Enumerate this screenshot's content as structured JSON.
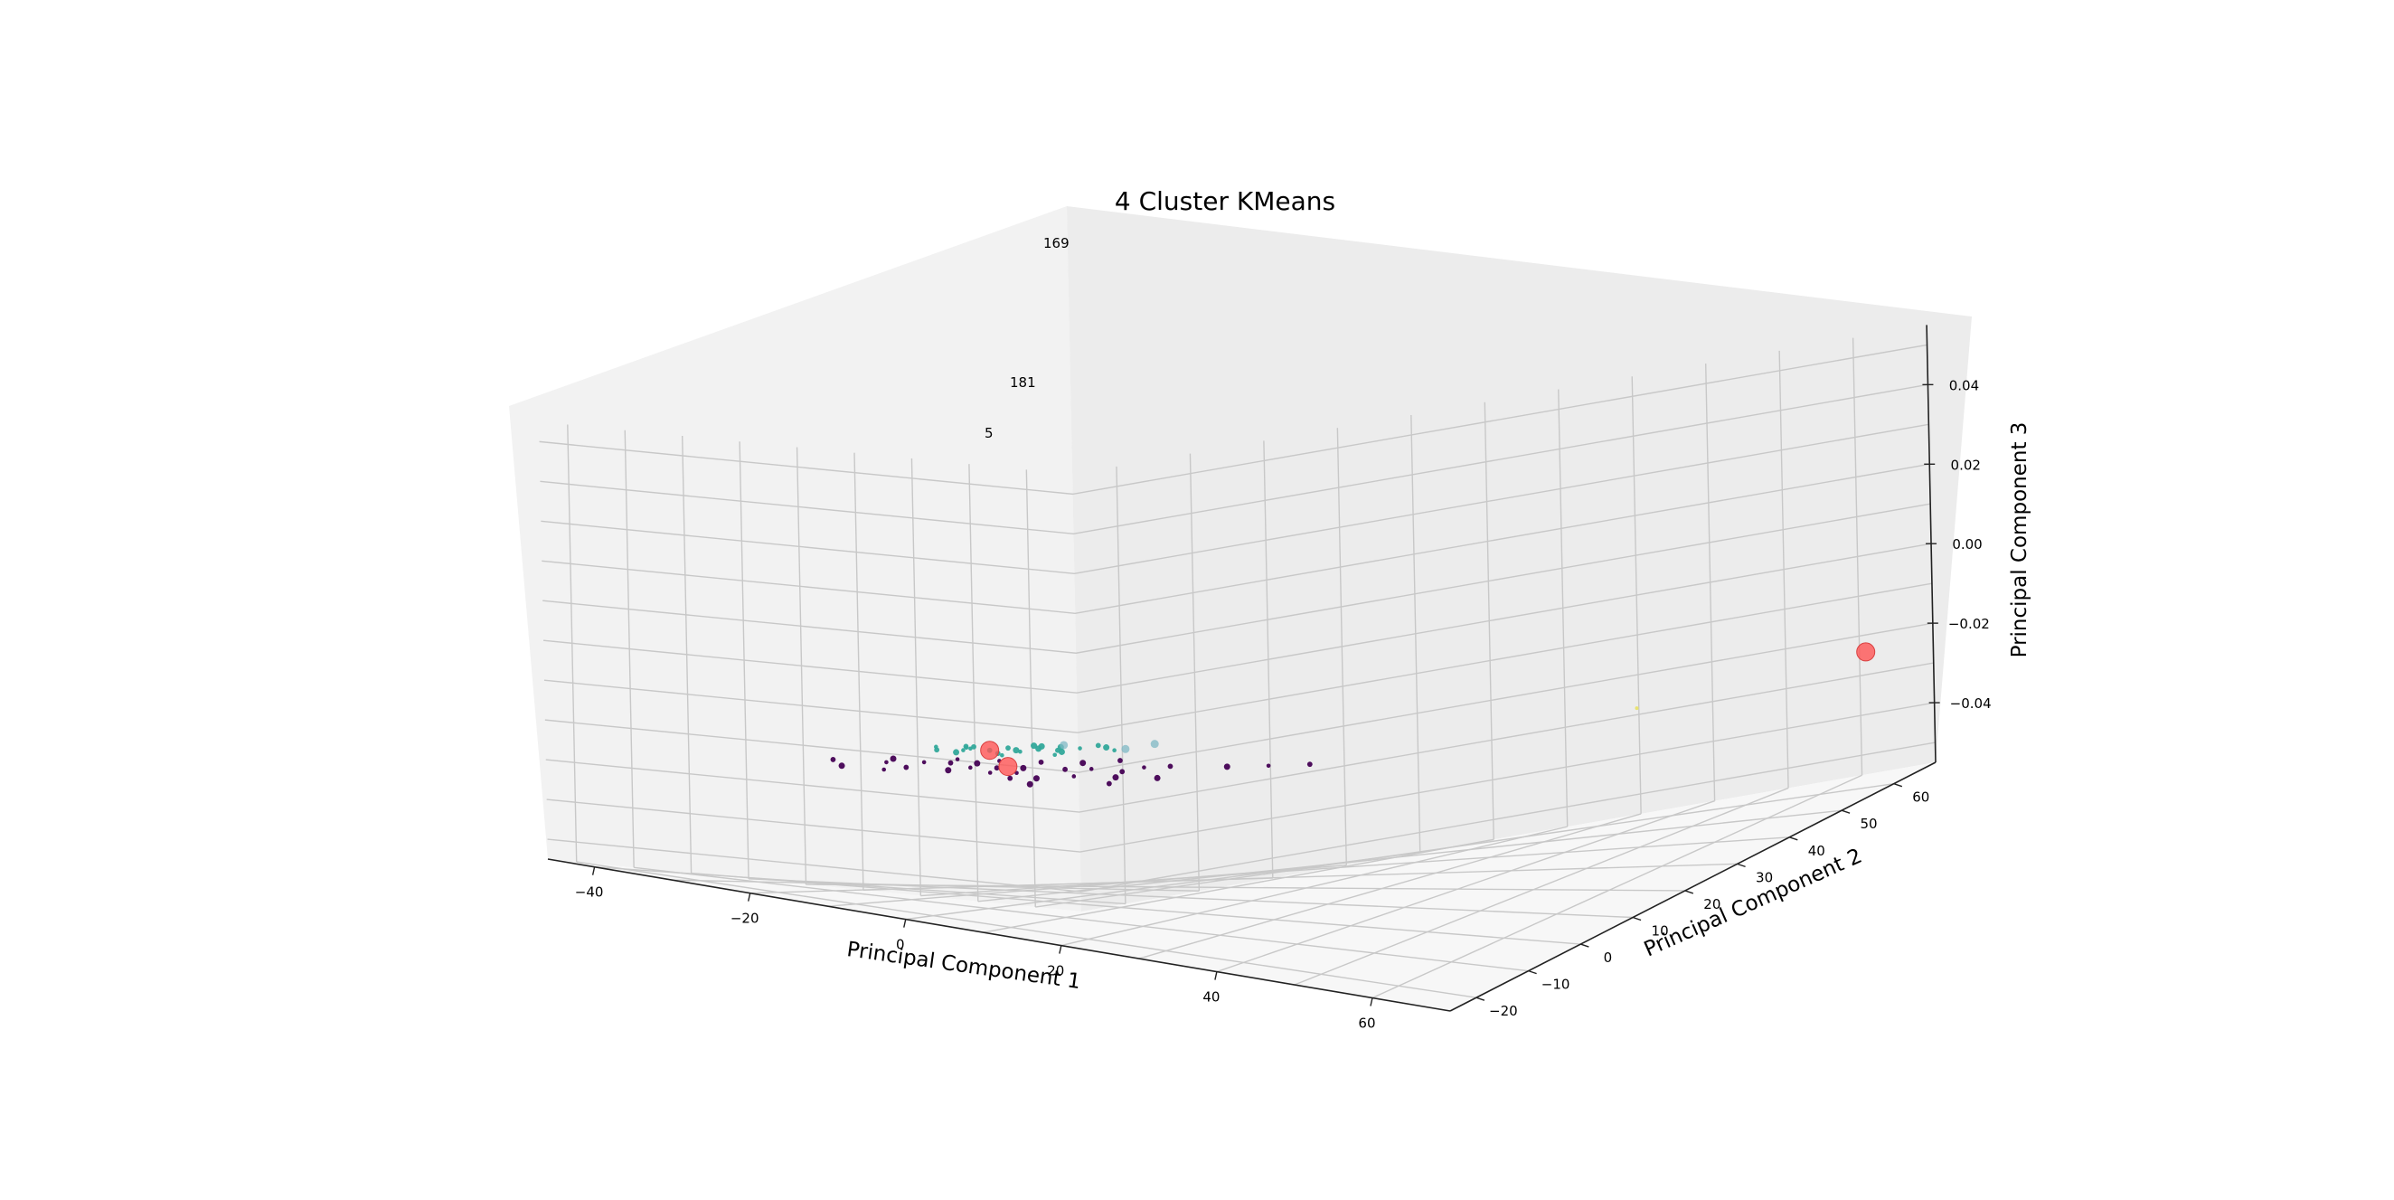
{
  "chart_data": {
    "type": "scatter",
    "projection": "3d",
    "title": "4 Cluster KMeans",
    "xlabel": "Principal Component 1",
    "ylabel": "Principal Component 2",
    "zlabel": "Principal Component 3",
    "xticks": [
      "−40",
      "−20",
      "0",
      "20",
      "40",
      "60"
    ],
    "yticks": [
      "−20",
      "−10",
      "0",
      "10",
      "20",
      "30",
      "40",
      "50",
      "60"
    ],
    "zticks": [
      "−0.04",
      "−0.02",
      "0.00",
      "0.02",
      "0.04"
    ],
    "grid": true,
    "colors": {
      "cluster_0": "#440154",
      "cluster_1": "#31a89a",
      "cluster_2": "#7fb8c4",
      "cluster_3": "#e8e36a",
      "centroid": "#ff5555",
      "pane_left": "#f2f2f2",
      "pane_back": "#ececec",
      "pane_floor": "#f7f7f7"
    },
    "annotations": [
      {
        "text": "169"
      },
      {
        "text": "181"
      },
      {
        "text": "5"
      }
    ],
    "series": [
      {
        "cluster": 0,
        "points": [
          [
            -8,
            -10,
            -0.02
          ],
          [
            -6,
            -8,
            -0.02
          ],
          [
            -4,
            -6,
            -0.02
          ],
          [
            -2,
            -10,
            -0.02
          ],
          [
            0,
            -8,
            -0.02
          ],
          [
            2,
            -6,
            -0.02
          ],
          [
            4,
            -10,
            -0.02
          ],
          [
            6,
            -4,
            -0.02
          ],
          [
            8,
            -12,
            -0.02
          ],
          [
            10,
            -8,
            -0.02
          ],
          [
            12,
            -2,
            -0.02
          ],
          [
            14,
            -6,
            -0.02
          ],
          [
            -10,
            -14,
            -0.02
          ],
          [
            -6,
            -16,
            -0.02
          ],
          [
            -2,
            -14,
            -0.02
          ],
          [
            2,
            -12,
            -0.02
          ],
          [
            6,
            -14,
            -0.02
          ],
          [
            10,
            -16,
            -0.02
          ],
          [
            -4,
            -2,
            -0.02
          ],
          [
            0,
            0,
            -0.02
          ],
          [
            4,
            2,
            -0.02
          ],
          [
            8,
            -2,
            -0.02
          ],
          [
            14,
            4,
            -0.02
          ],
          [
            20,
            6,
            -0.02
          ],
          [
            24,
            8,
            -0.02
          ],
          [
            28,
            10,
            -0.02
          ],
          [
            -12,
            -10,
            -0.02
          ],
          [
            -8,
            -4,
            -0.02
          ],
          [
            -14,
            -18,
            -0.02
          ],
          [
            -10,
            -22,
            -0.02
          ],
          [
            -6,
            -20,
            -0.02
          ],
          [
            16,
            -10,
            -0.02
          ],
          [
            18,
            -4,
            -0.02
          ],
          [
            12,
            2,
            -0.02
          ],
          [
            6,
            6,
            -0.02
          ]
        ]
      },
      {
        "cluster": 1,
        "points": [
          [
            -16,
            8,
            -0.02
          ],
          [
            -14,
            10,
            -0.02
          ],
          [
            -12,
            12,
            -0.02
          ],
          [
            -10,
            10,
            -0.02
          ],
          [
            -8,
            14,
            -0.02
          ],
          [
            -6,
            12,
            -0.02
          ],
          [
            -18,
            12,
            -0.02
          ],
          [
            -16,
            16,
            -0.02
          ],
          [
            -12,
            16,
            -0.02
          ],
          [
            -8,
            18,
            -0.02
          ],
          [
            -10,
            6,
            -0.02
          ],
          [
            -14,
            4,
            -0.02
          ],
          [
            -20,
            14,
            -0.02
          ],
          [
            -22,
            18,
            -0.02
          ],
          [
            -6,
            20,
            -0.02
          ],
          [
            -2,
            16,
            -0.02
          ],
          [
            -18,
            6,
            -0.02
          ],
          [
            -12,
            20,
            -0.02
          ],
          [
            -4,
            8,
            -0.02
          ],
          [
            -26,
            22,
            -0.02
          ],
          [
            -20,
            26,
            -0.02
          ],
          [
            -24,
            14,
            -0.02
          ],
          [
            -10,
            24,
            -0.02
          ],
          [
            -16,
            22,
            -0.02
          ],
          [
            -8,
            4,
            -0.02
          ]
        ]
      },
      {
        "cluster": 2,
        "points": [
          [
            -22,
            34,
            -0.02
          ],
          [
            -4,
            26,
            -0.02
          ],
          [
            -2,
            18,
            -0.02
          ]
        ]
      },
      {
        "cluster": 3,
        "points": [
          [
            50,
            40,
            -0.02
          ]
        ]
      },
      {
        "cluster": "centroids",
        "points": [
          [
            -14,
            10,
            -0.02
          ],
          [
            0,
            -6,
            -0.02
          ],
          [
            68,
            58,
            -0.02
          ]
        ]
      }
    ]
  }
}
